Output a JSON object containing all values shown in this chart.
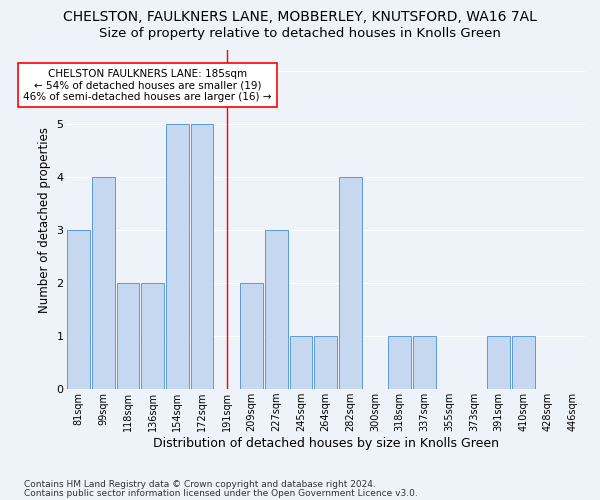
{
  "title": "CHELSTON, FAULKNERS LANE, MOBBERLEY, KNUTSFORD, WA16 7AL",
  "subtitle": "Size of property relative to detached houses in Knolls Green",
  "xlabel": "Distribution of detached houses by size in Knolls Green",
  "ylabel": "Number of detached properties",
  "footnote1": "Contains HM Land Registry data © Crown copyright and database right 2024.",
  "footnote2": "Contains public sector information licensed under the Open Government Licence v3.0.",
  "bins": [
    "81sqm",
    "99sqm",
    "118sqm",
    "136sqm",
    "154sqm",
    "172sqm",
    "191sqm",
    "209sqm",
    "227sqm",
    "245sqm",
    "264sqm",
    "282sqm",
    "300sqm",
    "318sqm",
    "337sqm",
    "355sqm",
    "373sqm",
    "391sqm",
    "410sqm",
    "428sqm",
    "446sqm"
  ],
  "values": [
    3,
    4,
    2,
    2,
    5,
    5,
    0,
    2,
    3,
    1,
    1,
    4,
    0,
    1,
    1,
    0,
    0,
    1,
    1,
    0,
    0
  ],
  "bar_color": "#c5d8f0",
  "bar_edge_color": "#5b9bd5",
  "red_line_index": 6,
  "annotation_text": "CHELSTON FAULKNERS LANE: 185sqm\n← 54% of detached houses are smaller (19)\n46% of semi-detached houses are larger (16) →",
  "annotation_box_color": "white",
  "annotation_box_edge_color": "red",
  "ylim": [
    0,
    6.4
  ],
  "yticks": [
    0,
    1,
    2,
    3,
    4,
    5,
    6
  ],
  "background_color": "#eef2f9",
  "grid_color": "white",
  "title_fontsize": 10,
  "subtitle_fontsize": 9.5,
  "annotation_fontsize": 7.5,
  "xlabel_fontsize": 9,
  "ylabel_fontsize": 8.5,
  "tick_fontsize": 7,
  "footnote_fontsize": 6.5
}
